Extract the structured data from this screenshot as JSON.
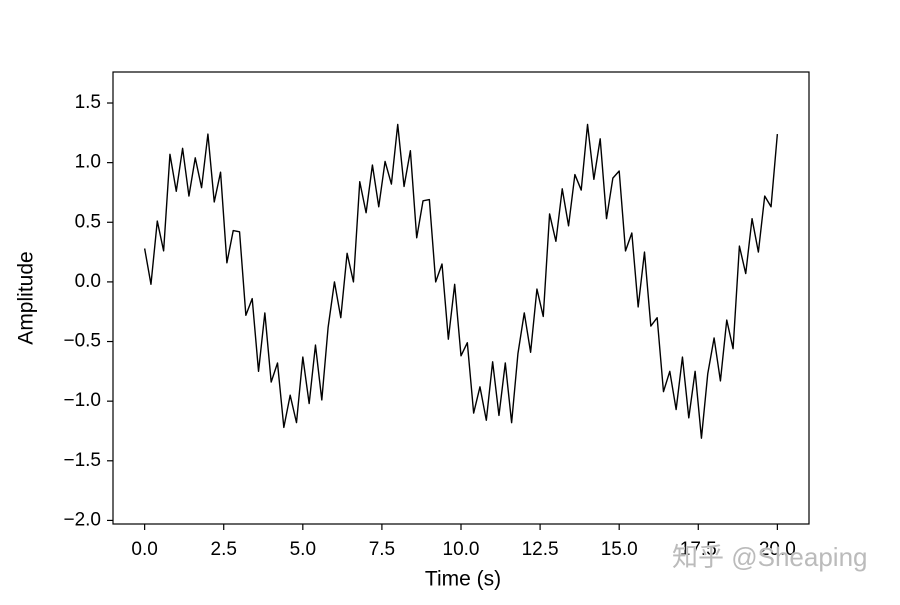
{
  "chart_data": {
    "type": "line",
    "xlabel": "Time (s)",
    "ylabel": "Amplitude",
    "color": "#000000",
    "x": [
      0,
      0.2,
      0.4,
      0.6,
      0.8,
      1.0,
      1.2,
      1.4,
      1.6,
      1.8,
      2.0,
      2.2,
      2.4,
      2.6,
      2.8,
      3.0,
      3.2,
      3.4,
      3.6,
      3.8,
      4.0,
      4.2,
      4.4,
      4.6,
      4.8,
      5.0,
      5.2,
      5.4,
      5.6,
      5.8,
      6.0,
      6.2,
      6.4,
      6.6,
      6.8,
      7.0,
      7.2,
      7.4,
      7.6,
      7.8,
      8.0,
      8.2,
      8.4,
      8.6,
      8.8,
      9.0,
      9.2,
      9.4,
      9.6,
      9.8,
      10.0,
      10.2,
      10.4,
      10.6,
      10.8,
      11.0,
      11.2,
      11.4,
      11.6,
      11.8,
      12.0,
      12.2,
      12.4,
      12.6,
      12.8,
      13.0,
      13.2,
      13.4,
      13.6,
      13.8,
      14.0,
      14.2,
      14.4,
      14.6,
      14.8,
      15.0,
      15.2,
      15.4,
      15.6,
      15.8,
      16.0,
      16.2,
      16.4,
      16.6,
      16.8,
      17.0,
      17.2,
      17.4,
      17.6,
      17.8,
      18.0,
      18.2,
      18.4,
      18.6,
      18.8,
      19.0,
      19.2,
      19.4,
      19.6,
      19.8,
      20.0
    ],
    "values": [
      0.28,
      -0.02,
      0.51,
      0.26,
      1.07,
      0.76,
      1.12,
      0.72,
      1.04,
      0.79,
      1.24,
      0.67,
      0.92,
      0.16,
      0.43,
      0.42,
      -0.28,
      -0.14,
      -0.75,
      -0.26,
      -0.84,
      -0.68,
      -1.22,
      -0.95,
      -1.18,
      -0.63,
      -1.02,
      -0.53,
      -0.99,
      -0.38,
      0.0,
      -0.3,
      0.24,
      0.0,
      0.84,
      0.58,
      0.98,
      0.63,
      1.01,
      0.82,
      1.32,
      0.8,
      1.1,
      0.37,
      0.68,
      0.69,
      0.0,
      0.15,
      -0.48,
      -0.02,
      -0.62,
      -0.51,
      -1.1,
      -0.88,
      -1.16,
      -0.67,
      -1.12,
      -0.68,
      -1.18,
      -0.6,
      -0.26,
      -0.59,
      -0.06,
      -0.29,
      0.57,
      0.34,
      0.78,
      0.47,
      0.9,
      0.77,
      1.32,
      0.86,
      1.2,
      0.53,
      0.87,
      0.93,
      0.26,
      0.41,
      -0.21,
      0.25,
      -0.37,
      -0.3,
      -0.92,
      -0.75,
      -1.07,
      -0.63,
      -1.14,
      -0.75,
      -1.31,
      -0.77,
      -0.47,
      -0.83,
      -0.32,
      -0.56,
      0.3,
      0.07,
      0.53,
      0.25,
      0.72,
      0.63,
      1.24
    ],
    "xlim": [
      -1.0,
      21.0
    ],
    "ylim": [
      -2.03,
      1.76
    ],
    "xticks": [
      {
        "value": 0,
        "label": "0.0"
      },
      {
        "value": 2.5,
        "label": "2.5"
      },
      {
        "value": 5,
        "label": "5.0"
      },
      {
        "value": 7.5,
        "label": "7.5"
      },
      {
        "value": 10,
        "label": "10.0"
      },
      {
        "value": 12.5,
        "label": "12.5"
      },
      {
        "value": 15,
        "label": "15.0"
      },
      {
        "value": 17.5,
        "label": "17.5"
      },
      {
        "value": 20,
        "label": "20.0"
      }
    ],
    "yticks": [
      {
        "value": -2.0,
        "label": "−2.0"
      },
      {
        "value": -1.5,
        "label": "−1.5"
      },
      {
        "value": -1.0,
        "label": "−1.0"
      },
      {
        "value": -0.5,
        "label": "−0.5"
      },
      {
        "value": 0,
        "label": "0.0"
      },
      {
        "value": 0.5,
        "label": "0.5"
      },
      {
        "value": 1.0,
        "label": "1.0"
      },
      {
        "value": 1.5,
        "label": "1.5"
      }
    ],
    "grid": false
  },
  "watermark": "知乎 @Sheaping"
}
